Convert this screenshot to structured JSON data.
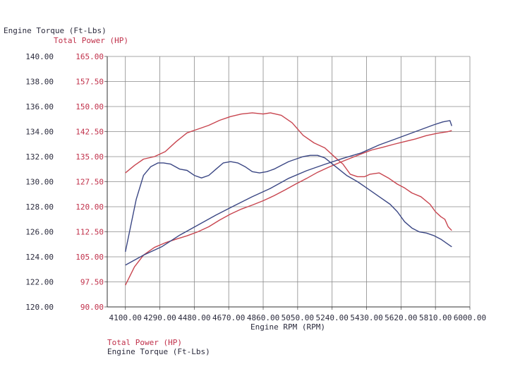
{
  "chart_data": {
    "type": "line",
    "title_left": "Engine Torque (Ft-Lbs)",
    "title_right": "Total Power (HP)",
    "xlabel": "Engine RPM (RPM)",
    "legend": [
      "Total Power (HP)",
      "Engine Torque (Ft-Lbs)"
    ],
    "legend_placement": "bottom-left",
    "grid": true,
    "xlim": [
      4000,
      6000
    ],
    "x_ticks": [
      "4100.00",
      "4290.00",
      "4480.00",
      "4670.00",
      "4860.00",
      "5050.00",
      "5240.00",
      "5430.00",
      "5620.00",
      "5810.00",
      "6000.00"
    ],
    "y_left_lim": [
      120,
      140
    ],
    "y_left_ticks": [
      "120.00",
      "122.00",
      "124.00",
      "126.00",
      "128.00",
      "130.00",
      "132.00",
      "134.00",
      "136.00",
      "138.00",
      "140.00"
    ],
    "y_right_lim": [
      90,
      165
    ],
    "y_right_ticks": [
      "90.00",
      "97.50",
      "105.00",
      "112.50",
      "120.00",
      "127.50",
      "135.00",
      "142.50",
      "150.00",
      "157.50",
      "165.00"
    ],
    "series": [
      {
        "name": "Engine Torque (Ft-Lbs)",
        "axis": "left",
        "color": "#c8454f",
        "x": [
          4100,
          4150,
          4200,
          4260,
          4320,
          4380,
          4440,
          4500,
          4560,
          4620,
          4680,
          4740,
          4800,
          4860,
          4900,
          4960,
          5020,
          5080,
          5140,
          5200,
          5260,
          5300,
          5340,
          5380,
          5420,
          5450,
          5500,
          5550,
          5600,
          5640,
          5680,
          5730,
          5780,
          5810,
          5840,
          5862,
          5880,
          5900
        ],
        "values": [
          130.7,
          131.3,
          131.8,
          132.0,
          132.4,
          133.2,
          133.9,
          134.2,
          134.5,
          134.9,
          135.2,
          135.4,
          135.5,
          135.4,
          135.5,
          135.3,
          134.7,
          133.7,
          133.1,
          132.7,
          131.9,
          131.4,
          130.6,
          130.4,
          130.4,
          130.6,
          130.7,
          130.3,
          129.8,
          129.5,
          129.1,
          128.8,
          128.2,
          127.6,
          127.2,
          127.0,
          126.4,
          126.1
        ]
      },
      {
        "name": "Total Power (HP)",
        "axis": "right",
        "color": "#c8454f",
        "x": [
          4100,
          4150,
          4200,
          4260,
          4320,
          4380,
          4440,
          4500,
          4560,
          4620,
          4680,
          4740,
          4800,
          4860,
          4920,
          4980,
          5040,
          5100,
          5160,
          5220,
          5280,
          5340,
          5400,
          5460,
          5520,
          5580,
          5640,
          5700,
          5760,
          5820,
          5880,
          5900
        ],
        "values": [
          96.5,
          102.0,
          105.5,
          107.8,
          109.2,
          110.3,
          111.3,
          112.5,
          114.0,
          116.0,
          117.8,
          119.3,
          120.5,
          121.8,
          123.3,
          125.0,
          126.8,
          128.5,
          130.3,
          131.8,
          133.2,
          134.5,
          135.8,
          137.0,
          137.8,
          138.7,
          139.5,
          140.3,
          141.3,
          142.0,
          142.5,
          142.8
        ]
      },
      {
        "name": "Engine Torque (Ft-Lbs)",
        "axis": "left",
        "color": "#3b4784",
        "x": [
          4100,
          4130,
          4160,
          4200,
          4240,
          4280,
          4310,
          4350,
          4400,
          4440,
          4480,
          4520,
          4560,
          4600,
          4640,
          4680,
          4720,
          4760,
          4800,
          4840,
          4880,
          4920,
          4960,
          5000,
          5040,
          5080,
          5120,
          5160,
          5200,
          5260,
          5320,
          5380,
          5440,
          5500,
          5560,
          5600,
          5640,
          5680,
          5720,
          5760,
          5800,
          5840,
          5880,
          5900
        ],
        "values": [
          124.4,
          126.5,
          128.6,
          130.5,
          131.2,
          131.5,
          131.5,
          131.4,
          131.0,
          130.9,
          130.5,
          130.3,
          130.5,
          131.0,
          131.5,
          131.6,
          131.5,
          131.2,
          130.8,
          130.7,
          130.8,
          131.0,
          131.3,
          131.6,
          131.8,
          132.0,
          132.1,
          132.1,
          131.9,
          131.2,
          130.5,
          130.0,
          129.4,
          128.8,
          128.2,
          127.6,
          126.8,
          126.3,
          126.0,
          125.9,
          125.7,
          125.4,
          125.0,
          124.8
        ]
      },
      {
        "name": "Total Power (HP)",
        "axis": "right",
        "color": "#3b4784",
        "x": [
          4100,
          4200,
          4300,
          4400,
          4500,
          4600,
          4700,
          4800,
          4900,
          5000,
          5100,
          5200,
          5300,
          5400,
          5500,
          5600,
          5700,
          5800,
          5850,
          5890,
          5900
        ],
        "values": [
          102.5,
          105.5,
          108.0,
          111.5,
          114.5,
          117.5,
          120.3,
          123.0,
          125.5,
          128.5,
          130.8,
          132.7,
          134.5,
          136.1,
          138.5,
          140.5,
          142.5,
          144.5,
          145.4,
          145.8,
          144.2
        ]
      }
    ]
  }
}
